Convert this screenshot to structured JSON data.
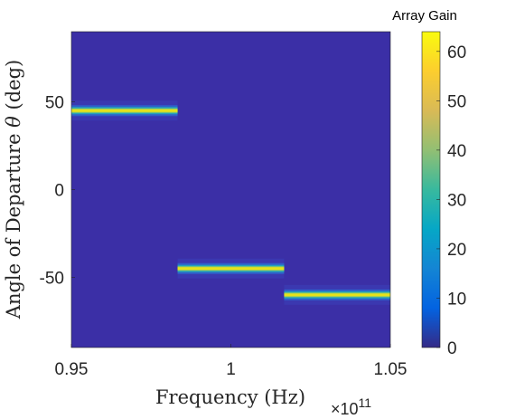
{
  "chart_data": {
    "type": "heatmap",
    "title": "",
    "xlabel": "Frequency (Hz)",
    "ylabel": "Angle of Departure θ (deg)",
    "x_exponent_label": "×10",
    "x_exponent_power": "11",
    "xlim": [
      0.95,
      1.05
    ],
    "ylim": [
      -90,
      90
    ],
    "x_ticks": [
      0.95,
      1.0,
      1.05
    ],
    "x_tick_labels": [
      "0.95",
      "1",
      "1.05"
    ],
    "y_ticks": [
      50,
      0,
      -50
    ],
    "y_tick_labels": [
      "50",
      "0",
      "-50"
    ],
    "colorbar": {
      "title": "Array Gain",
      "range": [
        0,
        64
      ],
      "ticks": [
        0,
        10,
        20,
        30,
        40,
        50,
        60
      ],
      "tick_labels": [
        "0",
        "10",
        "20",
        "30",
        "40",
        "50",
        "60"
      ],
      "colormap": "parula"
    },
    "background_value": 2,
    "beams": [
      {
        "x_start": 0.95,
        "x_end": 0.9833,
        "angle": 45,
        "peak_gain": 64
      },
      {
        "x_start": 0.9833,
        "x_end": 1.0167,
        "angle": -45,
        "peak_gain": 64
      },
      {
        "x_start": 1.0167,
        "x_end": 1.05,
        "angle": -60,
        "peak_gain": 64
      }
    ]
  }
}
